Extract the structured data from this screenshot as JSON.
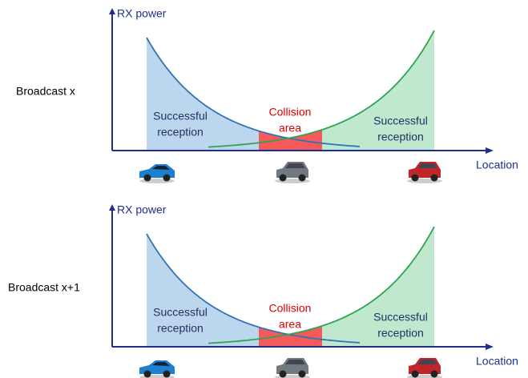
{
  "panels": [
    {
      "row_label": "Broadcast x",
      "y_axis_label": "RX power",
      "x_axis_label": "Location",
      "left_label": [
        "Successful",
        "reception"
      ],
      "collision_label": [
        "Collision",
        "area"
      ],
      "right_label": [
        "Successful",
        "reception"
      ]
    },
    {
      "row_label": "Broadcast x+1",
      "y_axis_label": "RX power",
      "x_axis_label": "Location",
      "left_label": [
        "Successful",
        "reception"
      ],
      "collision_label": [
        "Collision",
        "area"
      ],
      "right_label": [
        "Successful",
        "reception"
      ]
    }
  ]
}
